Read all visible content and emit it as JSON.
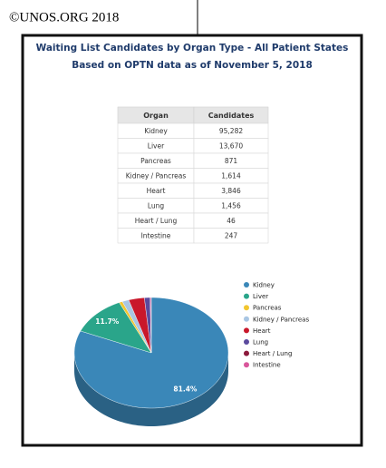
{
  "header": {
    "copyright": "©UNOS.ORG 2018"
  },
  "title": "Waiting List Candidates by Organ Type - All Patient States",
  "subtitle": "Based on OPTN data as of November 5, 2018",
  "table": {
    "columns": [
      "Organ",
      "Candidates"
    ],
    "rows": [
      [
        "Kidney",
        "95,282"
      ],
      [
        "Liver",
        "13,670"
      ],
      [
        "Pancreas",
        "871"
      ],
      [
        "Kidney / Pancreas",
        "1,614"
      ],
      [
        "Heart",
        "3,846"
      ],
      [
        "Lung",
        "1,456"
      ],
      [
        "Heart / Lung",
        "46"
      ],
      [
        "Intestine",
        "247"
      ]
    ]
  },
  "chart_data": {
    "type": "pie",
    "categories": [
      "Kidney",
      "Liver",
      "Pancreas",
      "Kidney / Pancreas",
      "Heart",
      "Lung",
      "Heart / Lung",
      "Intestine"
    ],
    "values": [
      81.4,
      11.7,
      0.7,
      1.4,
      3.3,
      1.2,
      0.04,
      0.2
    ],
    "value_labels": [
      "81.4%",
      "11.7%",
      null,
      null,
      null,
      null,
      null,
      null
    ],
    "colors": [
      "#3a87b8",
      "#2aa58a",
      "#f2c62f",
      "#a9c6e3",
      "#c9182b",
      "#5b4a9e",
      "#8c1a3c",
      "#d9569b"
    ],
    "legend": "right"
  }
}
